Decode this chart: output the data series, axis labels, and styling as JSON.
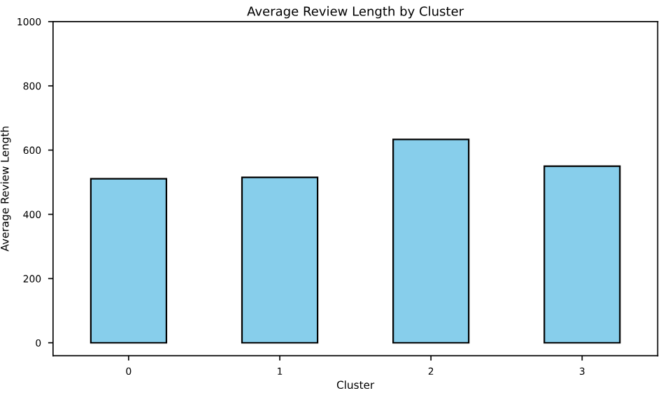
{
  "chart_data": {
    "type": "bar",
    "title": "Average Review Length by Cluster",
    "xlabel": "Cluster",
    "ylabel": "Average Review Length",
    "categories": [
      "0",
      "1",
      "2",
      "3"
    ],
    "values": [
      511,
      515,
      633,
      550
    ],
    "color": "#87ceeb",
    "ylim": [
      -40,
      1000
    ],
    "yticks": [
      0,
      200,
      400,
      600,
      800,
      1000
    ],
    "grid": false
  }
}
